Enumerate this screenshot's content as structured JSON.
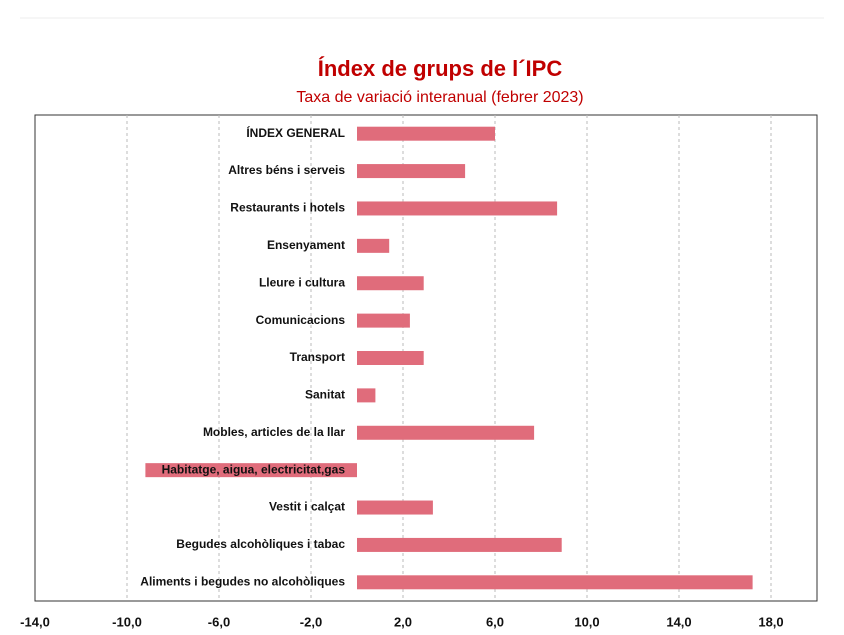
{
  "chart_data": {
    "type": "barh",
    "title": "Índex de grups de l´IPC",
    "subtitle": "Taxa de variació interanual (febrer 2023)",
    "categories": [
      "ÍNDEX GENERAL",
      "Altres béns i serveis",
      "Restaurants i hotels",
      "Ensenyament",
      "Lleure i cultura",
      "Comunicacions",
      "Transport",
      "Sanitat",
      "Mobles, articles de la llar",
      "Habitatge, aigua, electricitat,gas",
      "Vestit i calçat",
      "Begudes alcohòliques i tabac",
      "Aliments i begudes no alcohòliques"
    ],
    "values": [
      6.0,
      4.7,
      8.7,
      1.4,
      2.9,
      2.3,
      2.9,
      0.8,
      7.7,
      -9.2,
      3.3,
      8.9,
      17.2
    ],
    "color": "#e06c7b",
    "xlim": [
      -14,
      20
    ],
    "xticks": [
      {
        "value": -14,
        "label": "-14,0"
      },
      {
        "value": -10,
        "label": "-10,0"
      },
      {
        "value": -6,
        "label": "-6,0"
      },
      {
        "value": -2,
        "label": "-2,0"
      },
      {
        "value": 2,
        "label": "2,0"
      },
      {
        "value": 6,
        "label": "6,0"
      },
      {
        "value": 10,
        "label": "10,0"
      },
      {
        "value": 14,
        "label": "14,0"
      },
      {
        "value": 18,
        "label": "18,0"
      }
    ],
    "grid": true
  }
}
